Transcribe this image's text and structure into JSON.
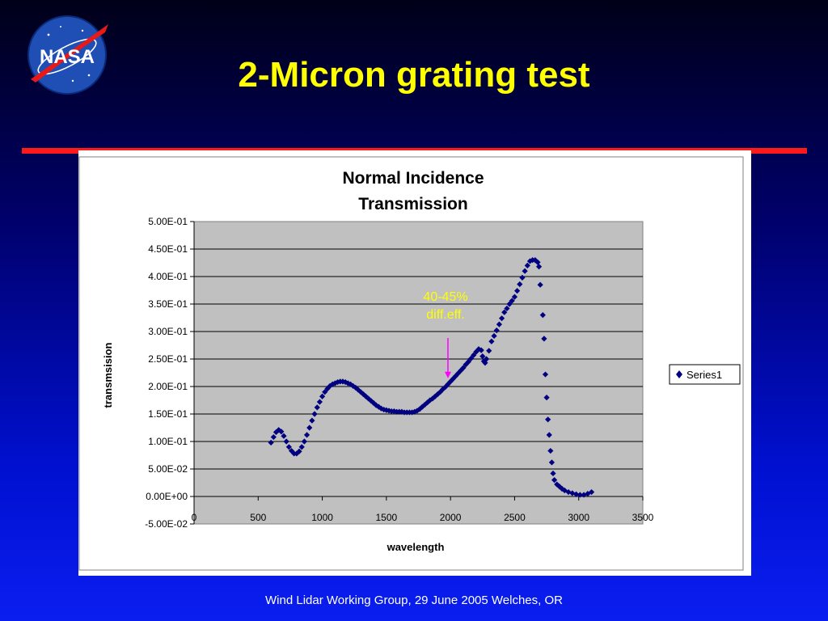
{
  "slide": {
    "title": "2-Micron grating test",
    "footer": "Wind Lidar Working Group, 29 June 2005 Welches, OR",
    "logo_text": "NASA"
  },
  "colors": {
    "title": "#ffff00",
    "rule": "#ff1a1a",
    "series": "#000080",
    "annotation_text": "#ffff00",
    "annotation_arrow": "#ff00ff",
    "plot_bg": "#c0c0c0"
  },
  "chart_data": {
    "type": "scatter",
    "title_lines": [
      "Normal Incidence",
      "Transmission"
    ],
    "xlabel": "wavelength",
    "ylabel": "transmsision",
    "xlim": [
      0,
      3500
    ],
    "ylim": [
      -0.05,
      0.5
    ],
    "x_ticks": [
      "0",
      "500",
      "1000",
      "1500",
      "2000",
      "2500",
      "3000",
      "3500"
    ],
    "y_ticks": [
      "5.00E-01",
      "4.50E-01",
      "4.00E-01",
      "3.50E-01",
      "3.00E-01",
      "2.50E-01",
      "2.00E-01",
      "1.50E-01",
      "1.00E-01",
      "5.00E-02",
      "0.00E+00",
      "-5.00E-02"
    ],
    "grid": true,
    "legend_position": "right",
    "annotation": {
      "lines": [
        "40-45%",
        "diff.eff."
      ],
      "x": 1980,
      "y": 0.215
    },
    "series": [
      {
        "name": "Series1",
        "points": [
          [
            600,
            0.098
          ],
          [
            620,
            0.108
          ],
          [
            640,
            0.117
          ],
          [
            660,
            0.121
          ],
          [
            680,
            0.118
          ],
          [
            700,
            0.11
          ],
          [
            720,
            0.1
          ],
          [
            740,
            0.09
          ],
          [
            760,
            0.083
          ],
          [
            780,
            0.078
          ],
          [
            800,
            0.078
          ],
          [
            820,
            0.082
          ],
          [
            840,
            0.09
          ],
          [
            860,
            0.1
          ],
          [
            880,
            0.112
          ],
          [
            900,
            0.125
          ],
          [
            920,
            0.138
          ],
          [
            940,
            0.15
          ],
          [
            960,
            0.162
          ],
          [
            980,
            0.172
          ],
          [
            1000,
            0.182
          ],
          [
            1020,
            0.19
          ],
          [
            1040,
            0.196
          ],
          [
            1060,
            0.201
          ],
          [
            1080,
            0.204
          ],
          [
            1100,
            0.206
          ],
          [
            1120,
            0.208
          ],
          [
            1140,
            0.209
          ],
          [
            1160,
            0.209
          ],
          [
            1180,
            0.208
          ],
          [
            1200,
            0.206
          ],
          [
            1220,
            0.204
          ],
          [
            1240,
            0.201
          ],
          [
            1260,
            0.198
          ],
          [
            1280,
            0.194
          ],
          [
            1300,
            0.19
          ],
          [
            1320,
            0.186
          ],
          [
            1340,
            0.182
          ],
          [
            1360,
            0.178
          ],
          [
            1380,
            0.174
          ],
          [
            1400,
            0.17
          ],
          [
            1420,
            0.166
          ],
          [
            1440,
            0.163
          ],
          [
            1460,
            0.16
          ],
          [
            1480,
            0.158
          ],
          [
            1500,
            0.157
          ],
          [
            1520,
            0.156
          ],
          [
            1540,
            0.155
          ],
          [
            1560,
            0.155
          ],
          [
            1580,
            0.154
          ],
          [
            1600,
            0.154
          ],
          [
            1620,
            0.154
          ],
          [
            1640,
            0.153
          ],
          [
            1660,
            0.153
          ],
          [
            1680,
            0.153
          ],
          [
            1700,
            0.153
          ],
          [
            1720,
            0.154
          ],
          [
            1740,
            0.156
          ],
          [
            1760,
            0.159
          ],
          [
            1780,
            0.163
          ],
          [
            1800,
            0.167
          ],
          [
            1820,
            0.171
          ],
          [
            1840,
            0.175
          ],
          [
            1860,
            0.178
          ],
          [
            1880,
            0.182
          ],
          [
            1900,
            0.186
          ],
          [
            1920,
            0.19
          ],
          [
            1940,
            0.195
          ],
          [
            1960,
            0.199
          ],
          [
            1980,
            0.204
          ],
          [
            2000,
            0.209
          ],
          [
            2020,
            0.214
          ],
          [
            2040,
            0.219
          ],
          [
            2060,
            0.224
          ],
          [
            2080,
            0.229
          ],
          [
            2100,
            0.234
          ],
          [
            2120,
            0.24
          ],
          [
            2140,
            0.245
          ],
          [
            2160,
            0.251
          ],
          [
            2180,
            0.257
          ],
          [
            2200,
            0.263
          ],
          [
            2220,
            0.268
          ],
          [
            2240,
            0.266
          ],
          [
            2250,
            0.255
          ],
          [
            2260,
            0.246
          ],
          [
            2270,
            0.243
          ],
          [
            2280,
            0.25
          ],
          [
            2300,
            0.265
          ],
          [
            2320,
            0.282
          ],
          [
            2340,
            0.292
          ],
          [
            2360,
            0.302
          ],
          [
            2380,
            0.313
          ],
          [
            2400,
            0.324
          ],
          [
            2420,
            0.335
          ],
          [
            2440,
            0.342
          ],
          [
            2460,
            0.35
          ],
          [
            2480,
            0.356
          ],
          [
            2500,
            0.363
          ],
          [
            2520,
            0.374
          ],
          [
            2540,
            0.386
          ],
          [
            2560,
            0.398
          ],
          [
            2580,
            0.41
          ],
          [
            2600,
            0.42
          ],
          [
            2620,
            0.428
          ],
          [
            2640,
            0.43
          ],
          [
            2660,
            0.43
          ],
          [
            2680,
            0.426
          ],
          [
            2690,
            0.418
          ],
          [
            2700,
            0.385
          ],
          [
            2720,
            0.33
          ],
          [
            2730,
            0.287
          ],
          [
            2740,
            0.222
          ],
          [
            2750,
            0.18
          ],
          [
            2760,
            0.14
          ],
          [
            2770,
            0.112
          ],
          [
            2780,
            0.083
          ],
          [
            2790,
            0.062
          ],
          [
            2800,
            0.042
          ],
          [
            2810,
            0.03
          ],
          [
            2830,
            0.022
          ],
          [
            2850,
            0.018
          ],
          [
            2870,
            0.014
          ],
          [
            2890,
            0.011
          ],
          [
            2920,
            0.008
          ],
          [
            2950,
            0.006
          ],
          [
            2980,
            0.004
          ],
          [
            3010,
            0.003
          ],
          [
            3040,
            0.003
          ],
          [
            3070,
            0.005
          ],
          [
            3100,
            0.008
          ]
        ]
      }
    ]
  }
}
